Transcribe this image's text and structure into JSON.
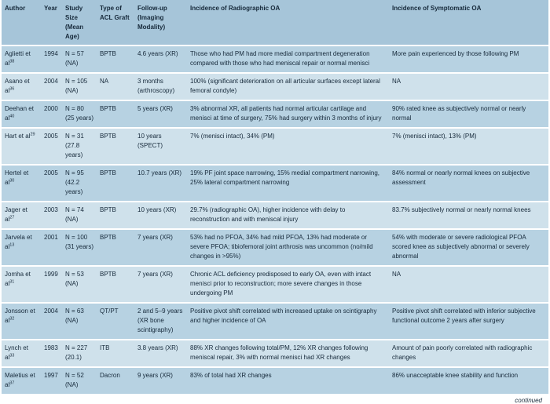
{
  "colors": {
    "header_bg": "#a6c5d9",
    "row_dark": "#b7d2e2",
    "row_light": "#cfe1eb",
    "text": "#16293a",
    "page_bg": "#ffffff"
  },
  "table": {
    "columns": [
      "Author",
      "Year",
      "Study Size (Mean Age)",
      "Type of ACL Graft",
      "Follow-up (Imaging Modality)",
      "Incidence of Radiographic OA",
      "Incidence of Symptomatic OA"
    ],
    "rows": [
      {
        "author": "Aglietti et al",
        "ref": "38",
        "year": "1994",
        "study_size": "N = 57 (NA)",
        "graft": "BPTB",
        "followup": "4.6 years (XR)",
        "radiographic_oa": "Those who had PM had more medial compartment degeneration compared with those who had meniscal repair or normal menisci",
        "symptomatic_oa": "More pain experienced by those following PM"
      },
      {
        "author": "Asano et al",
        "ref": "36",
        "year": "2004",
        "study_size": "N = 105 (NA)",
        "graft": "NA",
        "followup": "3 months (arthroscopy)",
        "radiographic_oa": "100% (significant deterioration on all articular surfaces except lateral femoral condyle)",
        "symptomatic_oa": "NA"
      },
      {
        "author": "Deehan et al",
        "ref": "40",
        "year": "2000",
        "study_size": "N = 80 (25 years)",
        "graft": "BPTB",
        "followup": "5 years (XR)",
        "radiographic_oa": "3% abnormal XR, all patients had normal articular cartilage and menisci at time of surgery, 75% had surgery within 3 months of injury",
        "symptomatic_oa": "90% rated knee as subjectively normal or nearly normal"
      },
      {
        "author": "Hart et al",
        "ref": "29",
        "year": "2005",
        "study_size": "N = 31 (27.8 years)",
        "graft": "BPTB",
        "followup": "10 years (SPECT)",
        "radiographic_oa": "7% (menisci intact), 34% (PM)",
        "symptomatic_oa": "7% (menisci intact), 13% (PM)"
      },
      {
        "author": "Hertel et al",
        "ref": "30",
        "year": "2005",
        "study_size": "N = 95 (42.2 years)",
        "graft": "BPTB",
        "followup": "10.7 years (XR)",
        "radiographic_oa": "19% PF joint space narrowing, 15% medial compartment narrowing, 25% lateral compartment narrowing",
        "symptomatic_oa": "84% normal or nearly normal knees on subjective assessment"
      },
      {
        "author": "Jager et al",
        "ref": "27",
        "year": "2003",
        "study_size": "N = 74 (NA)",
        "graft": "BPTB",
        "followup": "10 years (XR)",
        "radiographic_oa": "29.7% (radiographic OA), higher incidence with delay to reconstruction and with meniscal injury",
        "symptomatic_oa": "83.7% subjectively normal or nearly normal knees"
      },
      {
        "author": "Jarvela et al",
        "ref": "13",
        "year": "2001",
        "study_size": "N = 100 (31 years)",
        "graft": "BPTB",
        "followup": "7 years (XR)",
        "radiographic_oa": "53% had no PFOA, 34% had mild PFOA, 13% had moderate or severe PFOA; tibiofemoral joint arthrosis was uncommon (no/mild changes in >95%)",
        "symptomatic_oa": "54% with moderate or severe radiological PFOA scored knee as subjectively abnormal or severely abnormal"
      },
      {
        "author": "Jomha et al",
        "ref": "31",
        "year": "1999",
        "study_size": "N = 53 (NA)",
        "graft": "BPTB",
        "followup": "7 years (XR)",
        "radiographic_oa": "Chronic ACL deficiency predisposed to early OA, even with intact menisci prior to reconstruction; more severe changes in those undergoing PM",
        "symptomatic_oa": "NA"
      },
      {
        "author": "Jonsson et al",
        "ref": "32",
        "year": "2004",
        "study_size": "N = 63 (NA)",
        "graft": "QT/PT",
        "followup": "2 and 5–9 years (XR bone scintigraphy)",
        "radiographic_oa": "Positive pivot shift correlated with increased uptake on scintigraphy and higher incidence of OA",
        "symptomatic_oa": "Positive pivot shift correlated with inferior subjective functional outcome 2 years after surgery"
      },
      {
        "author": "Lynch et al",
        "ref": "33",
        "year": "1983",
        "study_size": "N = 227 (20.1)",
        "graft": "ITB",
        "followup": "3.8 years (XR)",
        "radiographic_oa": "88% XR changes following total/PM, 12% XR changes following meniscal repair, 3% with normal menisci had XR changes",
        "symptomatic_oa": "Amount of pain poorly correlated with radiographic changes"
      },
      {
        "author": "Maletius et al",
        "ref": "37",
        "year": "1997",
        "study_size": "N = 52 (NA)",
        "graft": "Dacron",
        "followup": "9 years (XR)",
        "radiographic_oa": "83% of total had XR changes",
        "symptomatic_oa": "86% unacceptable knee stability and function"
      }
    ]
  },
  "footer": {
    "continued_label": "continued"
  }
}
